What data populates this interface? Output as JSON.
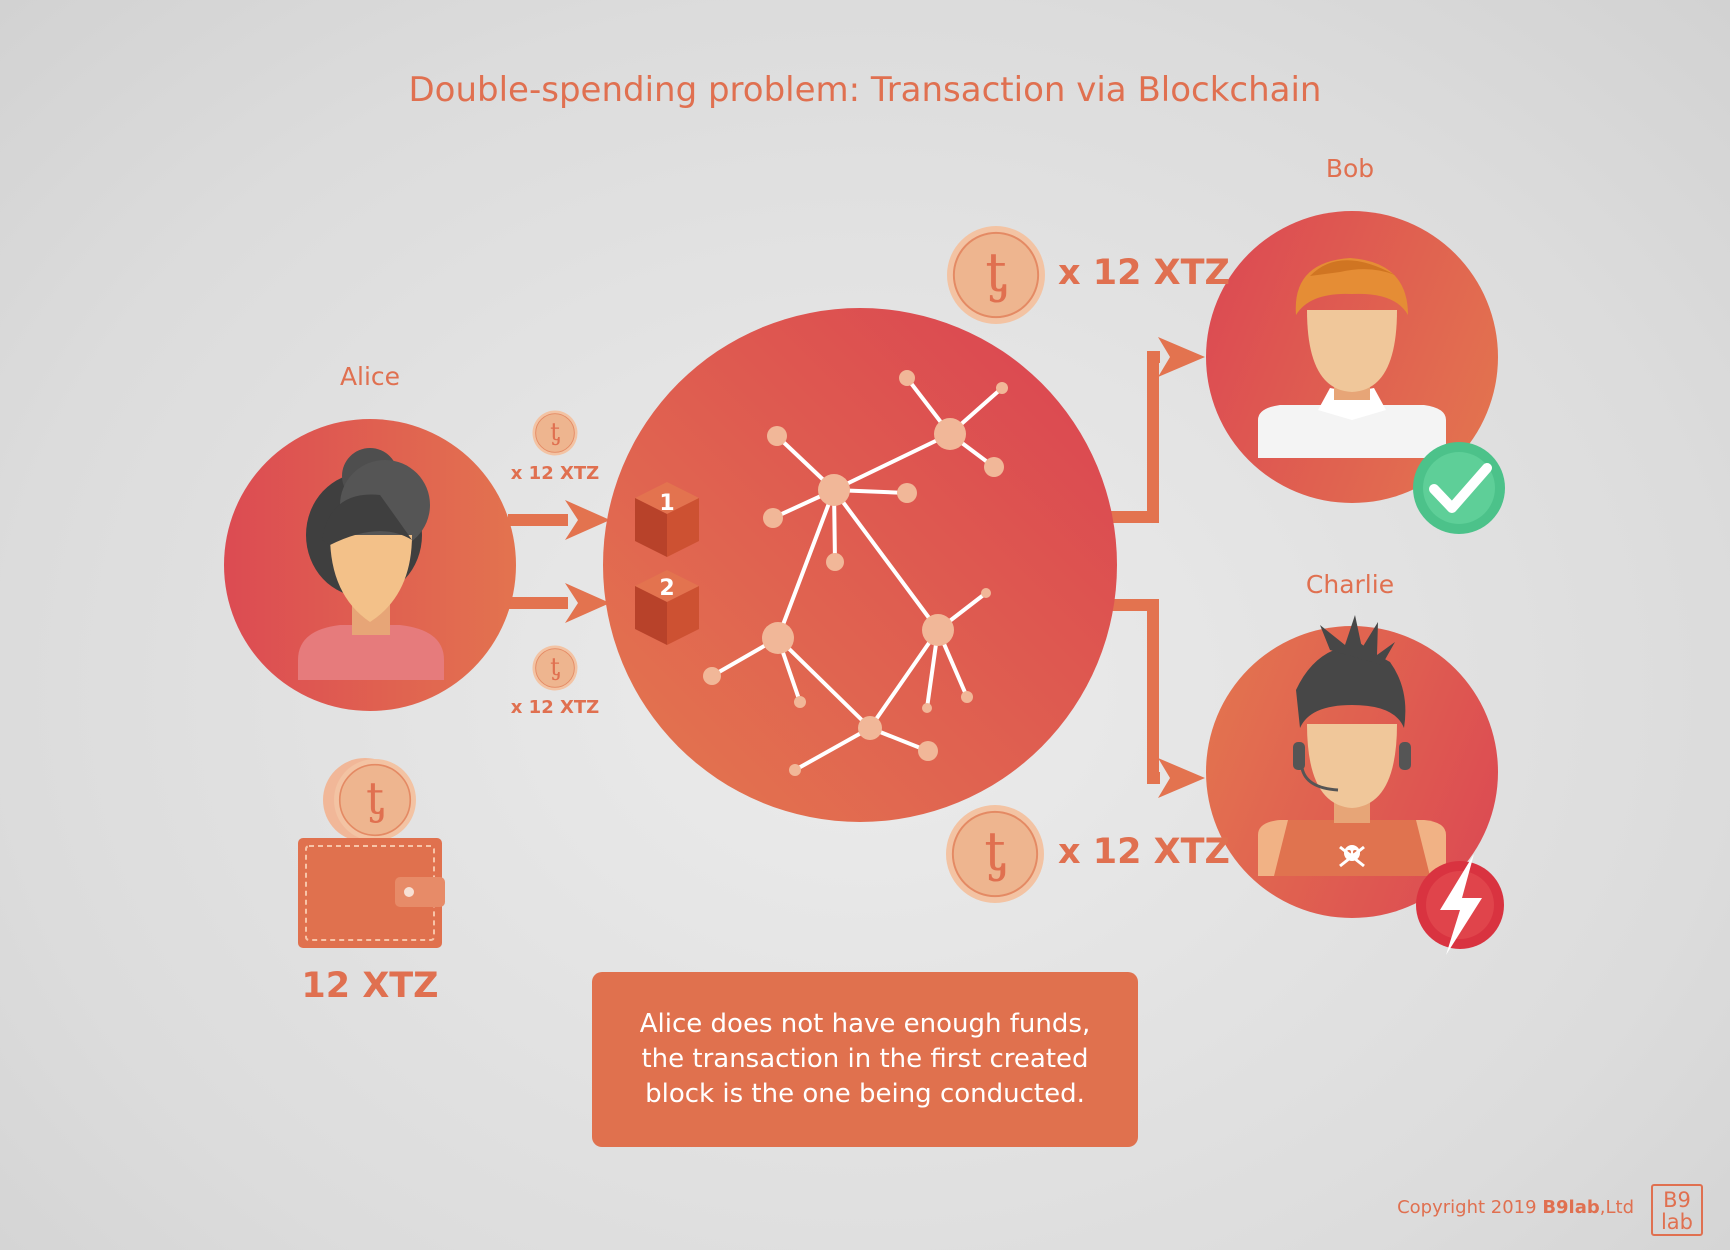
{
  "title": "Double-spending problem: Transaction via Blockchain",
  "people": {
    "alice": "Alice",
    "bob": "Bob",
    "charlie": "Charlie"
  },
  "transfers": {
    "small_top": "x 12 XTZ",
    "small_bottom": "x 12 XTZ",
    "to_bob": "x 12 XTZ",
    "to_charlie": "x 12 XTZ"
  },
  "blocks": [
    "1",
    "2"
  ],
  "wallet": {
    "balance": "12 XTZ"
  },
  "note": "Alice does not have enough funds, the transaction in the first created block is the one being conducted.",
  "footer": {
    "copyright_prefix": "Copyright 2019 ",
    "company": "B9lab",
    "suffix": ",Ltd",
    "logo_top": "B9",
    "logo_bottom": "lab"
  },
  "icons": {
    "tezos": "tezos-coin-icon",
    "success": "checkmark-icon",
    "fail": "lightning-icon",
    "pirate": "skull-icon"
  },
  "colors": {
    "accent": "#e07050",
    "red": "#dc4b52",
    "success": "#4cc28a",
    "fail": "#d93340",
    "coin": "#f4c4a4"
  }
}
